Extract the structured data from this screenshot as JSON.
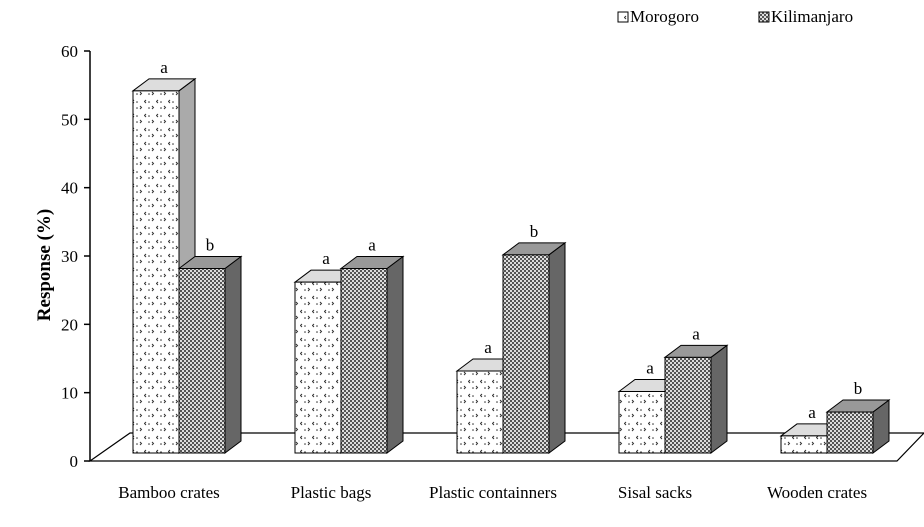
{
  "chart_data": {
    "type": "bar3d",
    "y_label": "Response (%)",
    "categories": [
      "Bamboo crates",
      "Plastic bags",
      "Plastic containners",
      "Sisal sacks",
      "Wooden crates"
    ],
    "series": [
      {
        "name": "Morogoro",
        "color": "#ffffff",
        "values": [
          53,
          25,
          12,
          9,
          2.5
        ],
        "significance": [
          "a",
          "a",
          "a",
          "a",
          "a"
        ]
      },
      {
        "name": "Kilimanjaro",
        "color": "#555555",
        "values": [
          27,
          27,
          29,
          14,
          6
        ],
        "significance": [
          "b",
          "a",
          "b",
          "a",
          "b"
        ]
      }
    ],
    "ylim": [
      0,
      60
    ],
    "yticks": [
      0,
      10,
      20,
      30,
      40,
      50,
      60
    ],
    "legend": "top-right"
  }
}
